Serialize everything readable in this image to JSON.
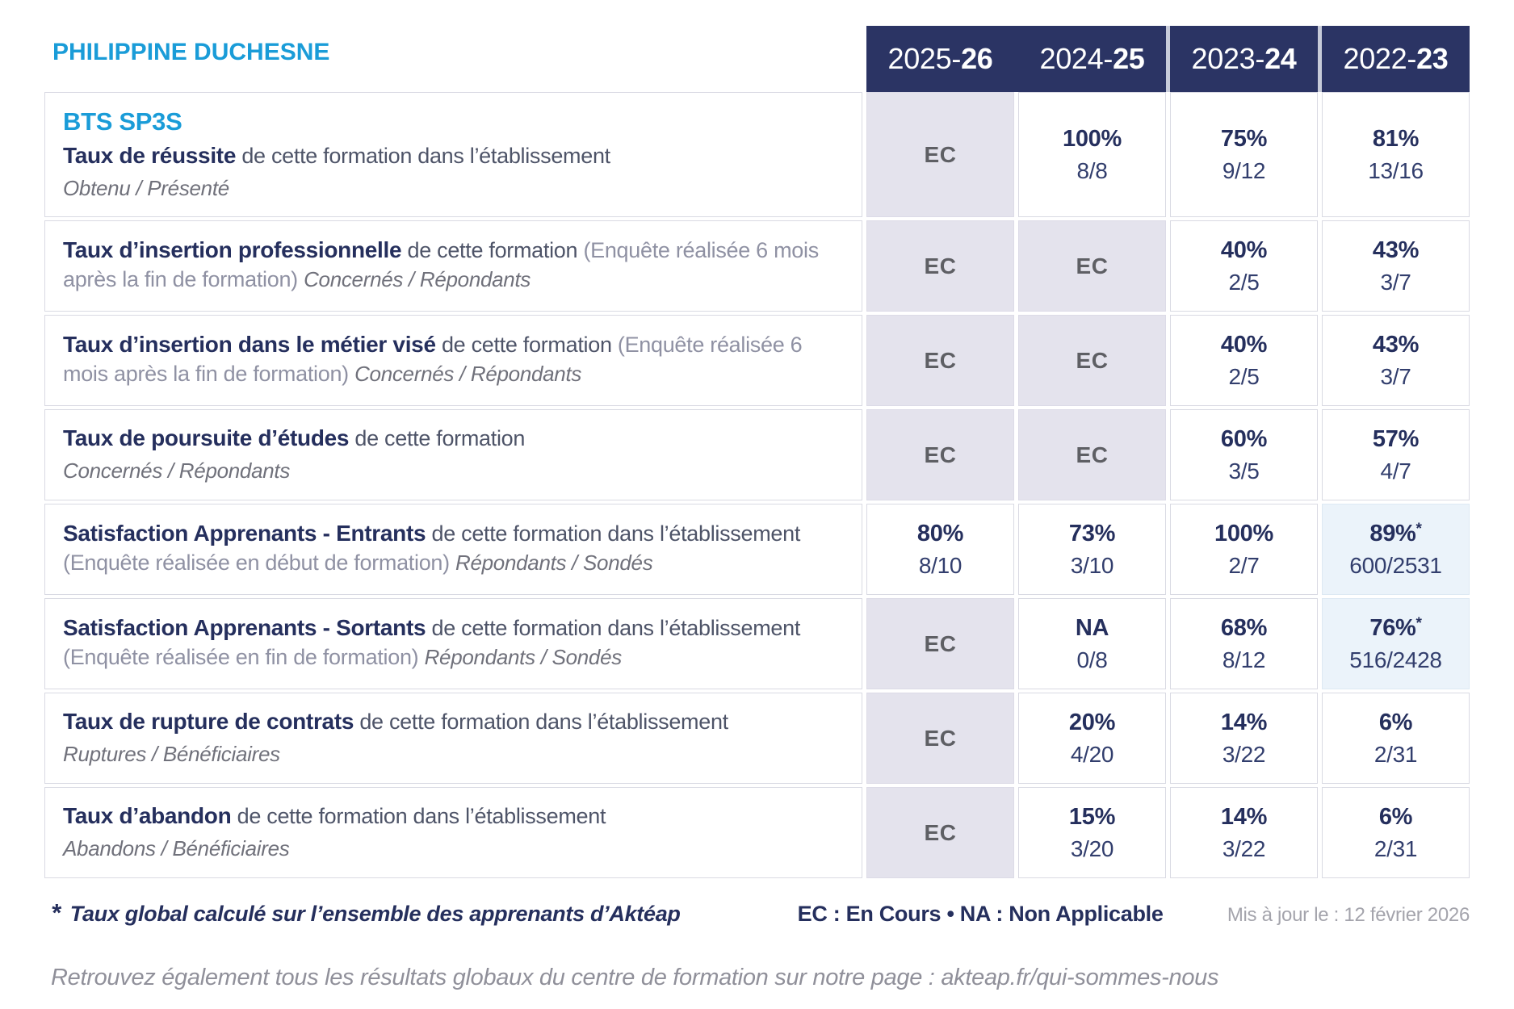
{
  "institution": "PHILIPPINE DUCHESNE",
  "program": "BTS SP3S",
  "years": [
    {
      "prefix": "2025-",
      "bold": "26"
    },
    {
      "prefix": "2024-",
      "bold": "25"
    },
    {
      "prefix": "2023-",
      "bold": "24"
    },
    {
      "prefix": "2022-",
      "bold": "23"
    }
  ],
  "rows": [
    {
      "title": "Taux de réussite",
      "desc": "de cette formation dans l’établissement",
      "note": "",
      "sub": "Obtenu / Présenté",
      "values": [
        {
          "main": "EC",
          "frac": "",
          "style": "ec"
        },
        {
          "main": "100%",
          "frac": "8/8",
          "style": "val"
        },
        {
          "main": "75%",
          "frac": "9/12",
          "style": "val"
        },
        {
          "main": "81%",
          "frac": "13/16",
          "style": "val"
        }
      ]
    },
    {
      "title": "Taux d’insertion professionnelle",
      "desc": "de cette formation",
      "note": "(Enquête réalisée 6 mois après la fin de formation)",
      "sub": "Concernés / Répondants",
      "values": [
        {
          "main": "EC",
          "frac": "",
          "style": "ec"
        },
        {
          "main": "EC",
          "frac": "",
          "style": "ec"
        },
        {
          "main": "40%",
          "frac": "2/5",
          "style": "val"
        },
        {
          "main": "43%",
          "frac": "3/7",
          "style": "val"
        }
      ]
    },
    {
      "title": "Taux d’insertion dans le métier visé",
      "desc": "de cette formation",
      "note": "(Enquête réalisée 6 mois après la fin de formation)",
      "sub": "Concernés / Répondants",
      "values": [
        {
          "main": "EC",
          "frac": "",
          "style": "ec"
        },
        {
          "main": "EC",
          "frac": "",
          "style": "ec"
        },
        {
          "main": "40%",
          "frac": "2/5",
          "style": "val"
        },
        {
          "main": "43%",
          "frac": "3/7",
          "style": "val"
        }
      ]
    },
    {
      "title": "Taux de poursuite d’études",
      "desc": "de cette formation",
      "note": "",
      "sub": "Concernés / Répondants",
      "values": [
        {
          "main": "EC",
          "frac": "",
          "style": "ec"
        },
        {
          "main": "EC",
          "frac": "",
          "style": "ec"
        },
        {
          "main": "60%",
          "frac": "3/5",
          "style": "val"
        },
        {
          "main": "57%",
          "frac": "4/7",
          "style": "val"
        }
      ]
    },
    {
      "title": "Satisfaction Apprenants - Entrants",
      "desc": "de cette formation dans l’établissement",
      "note": "(Enquête réalisée en début de formation)",
      "sub": "Répondants / Sondés",
      "values": [
        {
          "main": "80%",
          "frac": "8/10",
          "style": "val"
        },
        {
          "main": "73%",
          "frac": "3/10",
          "style": "val"
        },
        {
          "main": "100%",
          "frac": "2/7",
          "style": "val"
        },
        {
          "main": "89%",
          "star": "*",
          "frac": "600/2531",
          "style": "star"
        }
      ]
    },
    {
      "title": "Satisfaction Apprenants - Sortants",
      "desc": "de cette formation dans l’établissement",
      "note": "(Enquête réalisée en fin de formation)",
      "sub": "Répondants / Sondés",
      "values": [
        {
          "main": "EC",
          "frac": "",
          "style": "ec"
        },
        {
          "main": "NA",
          "frac": "0/8",
          "style": "val"
        },
        {
          "main": "68%",
          "frac": "8/12",
          "style": "val"
        },
        {
          "main": "76%",
          "star": "*",
          "frac": "516/2428",
          "style": "star"
        }
      ]
    },
    {
      "title": "Taux de rupture de contrats",
      "desc": "de cette formation dans l’établissement",
      "note": "",
      "sub": "Ruptures / Bénéficiaires",
      "values": [
        {
          "main": "EC",
          "frac": "",
          "style": "ec"
        },
        {
          "main": "20%",
          "frac": "4/20",
          "style": "val"
        },
        {
          "main": "14%",
          "frac": "3/22",
          "style": "val"
        },
        {
          "main": "6%",
          "frac": "2/31",
          "style": "val"
        }
      ]
    },
    {
      "title": "Taux d’abandon",
      "desc": "de cette formation dans l’établissement",
      "note": "",
      "sub": "Abandons / Bénéficiaires",
      "values": [
        {
          "main": "EC",
          "frac": "",
          "style": "ec"
        },
        {
          "main": "15%",
          "frac": "3/20",
          "style": "val"
        },
        {
          "main": "14%",
          "frac": "3/22",
          "style": "val"
        },
        {
          "main": "6%",
          "frac": "2/31",
          "style": "val"
        }
      ]
    }
  ],
  "footer": {
    "star": "*",
    "note": "Taux global calculé sur l’ensemble des apprenants d’Aktéap",
    "abbrev": "EC : En Cours  •  NA : Non Applicable",
    "updated": "Mis à jour le : 12 février 2026"
  },
  "bottom_note": "Retrouvez également tous les résultats globaux du centre de formation sur notre page : akteap.fr/qui-sommes-nous",
  "colors": {
    "accent_cyan": "#1a9cd8",
    "navy": "#252f5d",
    "header_bg": "#2b3464",
    "ec_cell_bg": "#e4e3ed",
    "star_cell_bg": "#ebf3fa",
    "cell_border": "#d9dae3"
  }
}
